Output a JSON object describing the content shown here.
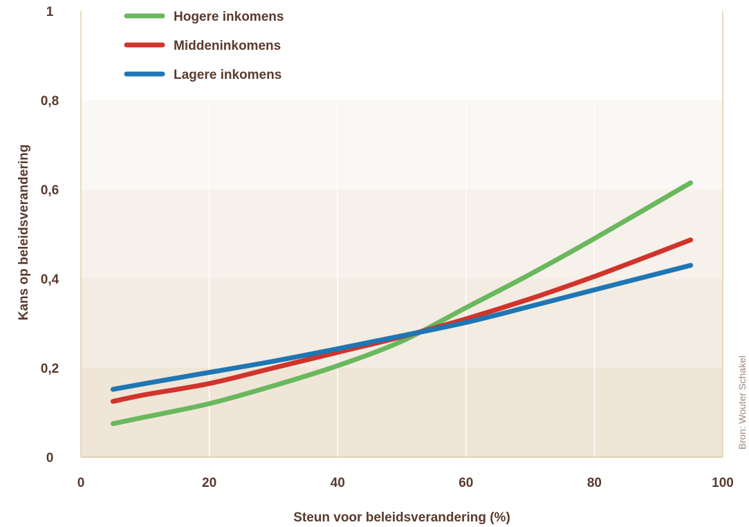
{
  "chart_data": {
    "type": "line",
    "xlabel": "Steun voor beleidsverandering (%)",
    "ylabel": "Kans op beleidsverandering",
    "xlim": [
      0,
      100
    ],
    "ylim": [
      0,
      1
    ],
    "x_ticks": [
      "0",
      "20",
      "40",
      "60",
      "80",
      "100"
    ],
    "y_ticks": [
      "0",
      "0,2",
      "0,4",
      "0,6",
      "0,8",
      "1"
    ],
    "legend_position": "top-left",
    "source": "Bron: Wouter Schakel",
    "series": [
      {
        "name": "Hogere inkomens",
        "color": "#6ab85e",
        "x": [
          5,
          10,
          20,
          30,
          40,
          50,
          60,
          70,
          80,
          95
        ],
        "y": [
          0.075,
          0.09,
          0.12,
          0.16,
          0.205,
          0.26,
          0.335,
          0.41,
          0.49,
          0.615
        ]
      },
      {
        "name": "Middeninkomens",
        "color": "#d0342c",
        "x": [
          5,
          10,
          20,
          30,
          40,
          50,
          60,
          70,
          80,
          95
        ],
        "y": [
          0.125,
          0.14,
          0.165,
          0.2,
          0.235,
          0.27,
          0.31,
          0.355,
          0.405,
          0.487
        ]
      },
      {
        "name": "Lagere inkomens",
        "color": "#1f76b4",
        "x": [
          5,
          10,
          20,
          30,
          40,
          50,
          60,
          70,
          80,
          95
        ],
        "y": [
          0.152,
          0.165,
          0.19,
          0.215,
          0.243,
          0.272,
          0.302,
          0.338,
          0.375,
          0.43
        ]
      }
    ]
  }
}
